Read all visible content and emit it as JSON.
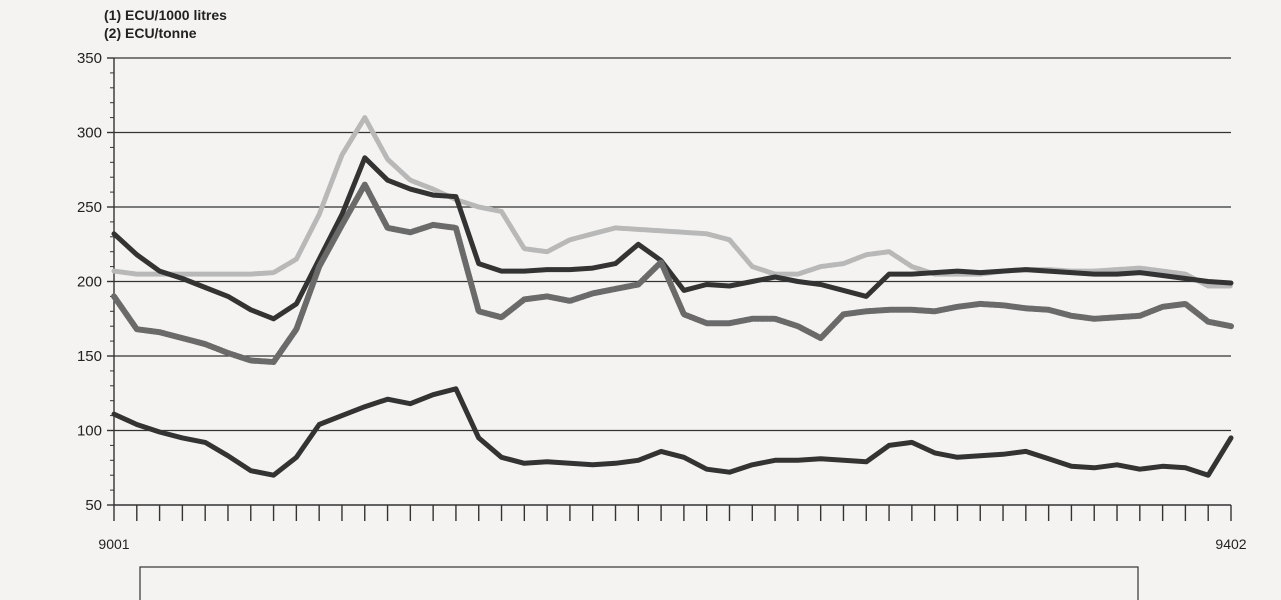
{
  "units": {
    "line1": "(1) ECU/1000 litres",
    "line2": "(2) ECU/tonne"
  },
  "colors": {
    "background": "#f4f3f1",
    "grid": "#333333",
    "series_dark": "#333333",
    "series_medium": "#6a6a6a",
    "series_light": "#b8b8b8"
  },
  "chart_data": {
    "type": "line",
    "x_start_label": "9001",
    "x_end_label": "9402",
    "x": [
      "9001",
      "9002",
      "9003",
      "9004",
      "9005",
      "9006",
      "9007",
      "9008",
      "9009",
      "9010",
      "9011",
      "9012",
      "9101",
      "9102",
      "9103",
      "9104",
      "9105",
      "9106",
      "9107",
      "9108",
      "9109",
      "9110",
      "9111",
      "9112",
      "9201",
      "9202",
      "9203",
      "9204",
      "9205",
      "9206",
      "9207",
      "9208",
      "9209",
      "9210",
      "9211",
      "9212",
      "9301",
      "9302",
      "9303",
      "9304",
      "9305",
      "9306",
      "9307",
      "9308",
      "9309",
      "9310",
      "9311",
      "9312",
      "9401",
      "9402"
    ],
    "ylim": [
      50,
      350
    ],
    "yticks": [
      50,
      100,
      150,
      200,
      250,
      300,
      350
    ],
    "grid": true,
    "series": [
      {
        "style": "light",
        "values": [
          207,
          205,
          205,
          205,
          205,
          205,
          205,
          206,
          215,
          245,
          285,
          310,
          282,
          268,
          262,
          255,
          250,
          247,
          222,
          220,
          228,
          232,
          236,
          235,
          234,
          233,
          232,
          228,
          210,
          205,
          205,
          210,
          212,
          218,
          220,
          210,
          205,
          205,
          205,
          207,
          208,
          208,
          207,
          207,
          208,
          209,
          207,
          205,
          197,
          197
        ]
      },
      {
        "style": "dark",
        "values": [
          232,
          218,
          207,
          202,
          196,
          190,
          181,
          175,
          185,
          215,
          245,
          283,
          268,
          262,
          258,
          257,
          212,
          207,
          207,
          208,
          208,
          209,
          212,
          225,
          214,
          194,
          198,
          197,
          200,
          203,
          200,
          198,
          194,
          190,
          205,
          205,
          206,
          207,
          206,
          207,
          208,
          207,
          206,
          205,
          205,
          206,
          204,
          202,
          200,
          199
        ]
      },
      {
        "style": "medium",
        "values": [
          190,
          168,
          166,
          162,
          158,
          152,
          147,
          146,
          168,
          210,
          238,
          265,
          236,
          233,
          238,
          236,
          180,
          176,
          188,
          190,
          187,
          192,
          195,
          198,
          213,
          178,
          172,
          172,
          175,
          175,
          170,
          162,
          178,
          180,
          181,
          181,
          180,
          183,
          185,
          184,
          182,
          181,
          177,
          175,
          176,
          177,
          183,
          185,
          173,
          170
        ]
      },
      {
        "style": "dark-lower",
        "values": [
          111,
          104,
          99,
          95,
          92,
          83,
          73,
          70,
          82,
          104,
          110,
          116,
          121,
          118,
          124,
          128,
          95,
          82,
          78,
          79,
          78,
          77,
          78,
          80,
          86,
          82,
          74,
          72,
          77,
          80,
          80,
          81,
          80,
          79,
          90,
          92,
          85,
          82,
          83,
          84,
          86,
          81,
          76,
          75,
          77,
          74,
          76,
          75,
          70,
          95
        ]
      }
    ]
  }
}
